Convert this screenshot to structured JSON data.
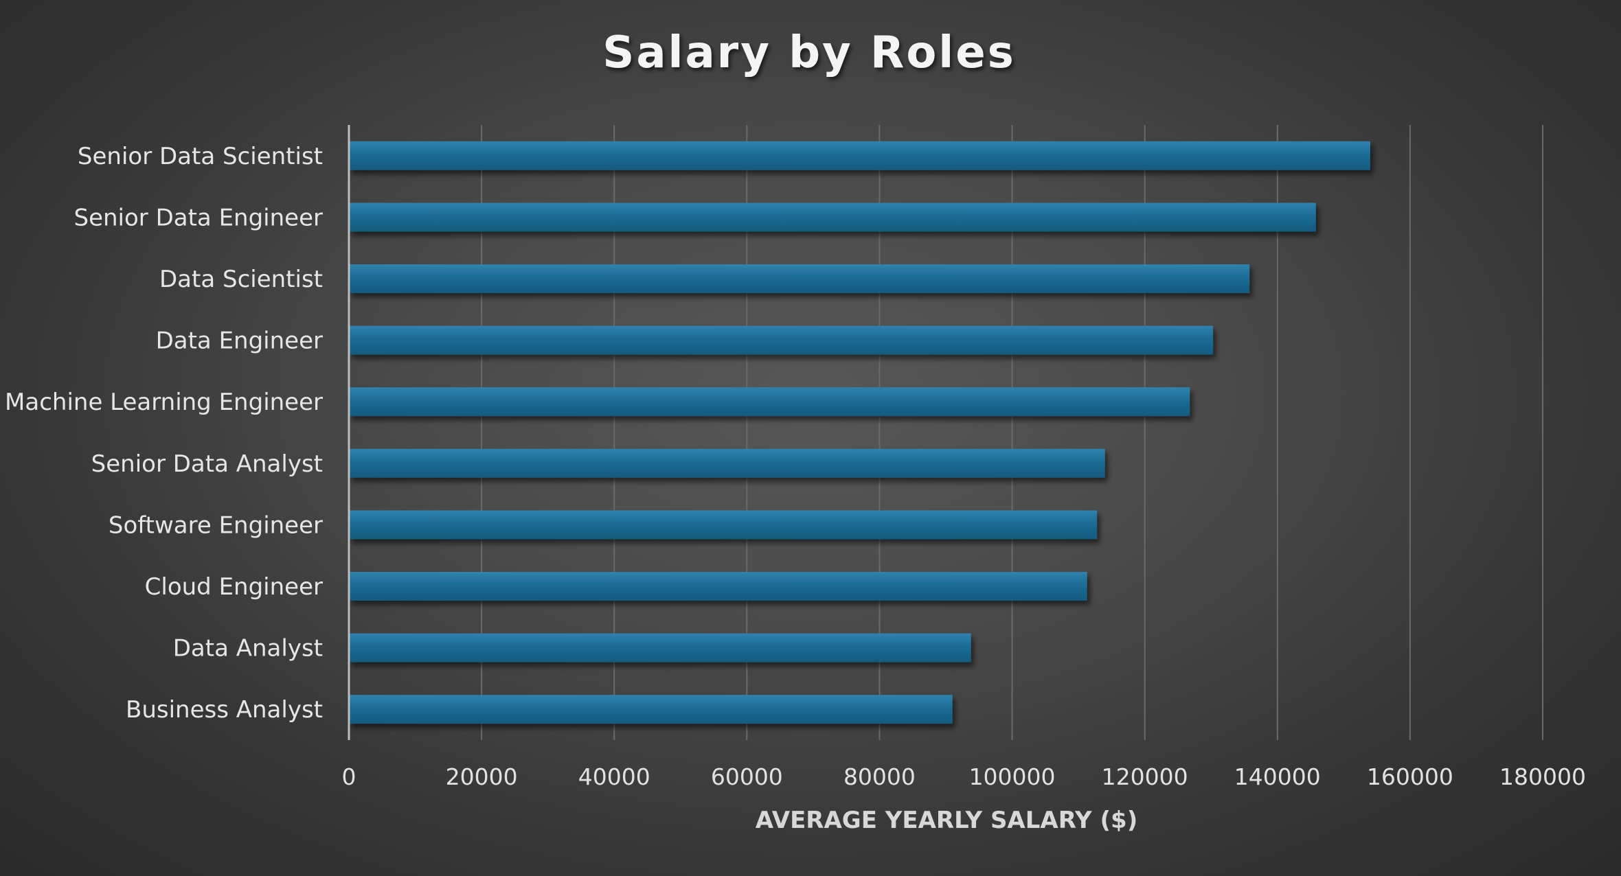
{
  "chart_data": {
    "type": "bar",
    "orientation": "horizontal",
    "title": "Salary by Roles",
    "xlabel": "AVERAGE YEARLY SALARY ($)",
    "ylabel": "",
    "categories": [
      "Senior Data Scientist",
      "Senior Data Engineer",
      "Data Scientist",
      "Data Engineer",
      "Machine Learning Engineer",
      "Senior Data Analyst",
      "Software Engineer",
      "Cloud Engineer",
      "Data Analyst",
      "Business Analyst"
    ],
    "values": [
      154000,
      145800,
      135800,
      130300,
      126800,
      114000,
      112800,
      111300,
      93800,
      91000
    ],
    "xlim": [
      0,
      180000
    ],
    "ticks": [
      "0",
      "20000",
      "40000",
      "60000",
      "80000",
      "100000",
      "120000",
      "140000",
      "160000",
      "180000"
    ],
    "tick_values": [
      0,
      20000,
      40000,
      60000,
      80000,
      100000,
      120000,
      140000,
      160000,
      180000
    ],
    "grid": true,
    "legend": "none",
    "colors": {
      "bar": "#1b6a92",
      "bar_highlight": "#2f86b0",
      "bar_shadow": "#0f4a68"
    }
  }
}
